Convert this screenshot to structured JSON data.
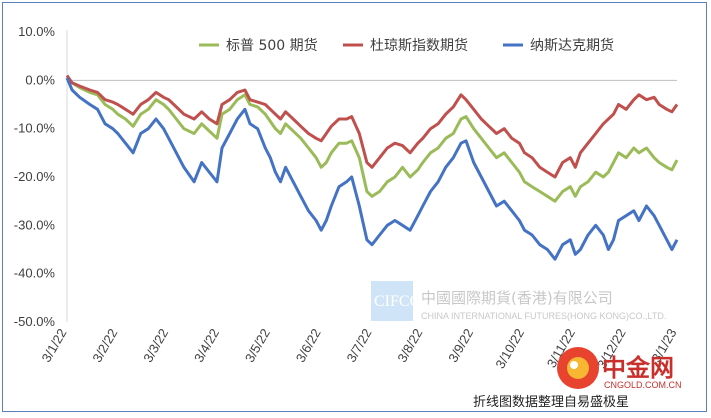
{
  "chart_data": {
    "type": "line",
    "title": "",
    "xlabel": "",
    "ylabel": "",
    "x_tick_labels": [
      "3/1/22",
      "3/2/22",
      "3/3/22",
      "3/4/22",
      "3/5/22",
      "3/6/22",
      "3/7/22",
      "3/8/22",
      "3/9/22",
      "3/10/22",
      "3/11/22",
      "3/12/22",
      "3/1/23"
    ],
    "y_tick_labels": [
      "10.0%",
      "0.0%",
      "-10.0%",
      "-20.0%",
      "-30.0%",
      "-40.0%",
      "-50.0%"
    ],
    "ylim": [
      -50,
      10
    ],
    "xlim": [
      0,
      12
    ],
    "grid": false,
    "legend_position": "top",
    "series": [
      {
        "name": "标普 500 期货",
        "color": "#9bbb59",
        "points": [
          [
            0,
            0.5
          ],
          [
            0.1,
            -0.5
          ],
          [
            0.25,
            -1.5
          ],
          [
            0.45,
            -2.5
          ],
          [
            0.6,
            -3
          ],
          [
            0.75,
            -5
          ],
          [
            0.9,
            -6
          ],
          [
            1,
            -7
          ],
          [
            1.15,
            -8
          ],
          [
            1.3,
            -9.5
          ],
          [
            1.45,
            -7
          ],
          [
            1.6,
            -6
          ],
          [
            1.75,
            -4
          ],
          [
            1.9,
            -5
          ],
          [
            2,
            -6
          ],
          [
            2.15,
            -8
          ],
          [
            2.3,
            -10
          ],
          [
            2.5,
            -11
          ],
          [
            2.65,
            -9
          ],
          [
            2.8,
            -10.5
          ],
          [
            2.95,
            -12
          ],
          [
            3.05,
            -7
          ],
          [
            3.2,
            -6
          ],
          [
            3.35,
            -4
          ],
          [
            3.5,
            -3
          ],
          [
            3.6,
            -5
          ],
          [
            3.75,
            -5.5
          ],
          [
            3.9,
            -7
          ],
          [
            4,
            -8.5
          ],
          [
            4.1,
            -10
          ],
          [
            4.2,
            -11
          ],
          [
            4.3,
            -9
          ],
          [
            4.45,
            -10.5
          ],
          [
            4.6,
            -12
          ],
          [
            4.75,
            -14
          ],
          [
            4.9,
            -16
          ],
          [
            5,
            -18
          ],
          [
            5.1,
            -17
          ],
          [
            5.2,
            -15
          ],
          [
            5.35,
            -13
          ],
          [
            5.5,
            -13
          ],
          [
            5.6,
            -12.5
          ],
          [
            5.75,
            -16
          ],
          [
            5.9,
            -23
          ],
          [
            6,
            -24
          ],
          [
            6.15,
            -23
          ],
          [
            6.3,
            -21
          ],
          [
            6.45,
            -20
          ],
          [
            6.6,
            -18
          ],
          [
            6.75,
            -20
          ],
          [
            6.9,
            -18.5
          ],
          [
            7,
            -17
          ],
          [
            7.15,
            -15
          ],
          [
            7.3,
            -14
          ],
          [
            7.45,
            -12
          ],
          [
            7.6,
            -11
          ],
          [
            7.75,
            -8
          ],
          [
            7.85,
            -7.5
          ],
          [
            8,
            -10
          ],
          [
            8.15,
            -12
          ],
          [
            8.3,
            -14
          ],
          [
            8.45,
            -16
          ],
          [
            8.6,
            -15
          ],
          [
            8.75,
            -17
          ],
          [
            8.9,
            -19
          ],
          [
            9,
            -21
          ],
          [
            9.15,
            -22
          ],
          [
            9.3,
            -23
          ],
          [
            9.45,
            -24
          ],
          [
            9.6,
            -25
          ],
          [
            9.75,
            -23
          ],
          [
            9.9,
            -22
          ],
          [
            10,
            -24
          ],
          [
            10.1,
            -22
          ],
          [
            10.25,
            -21
          ],
          [
            10.4,
            -19
          ],
          [
            10.55,
            -20
          ],
          [
            10.65,
            -19
          ],
          [
            10.75,
            -17
          ],
          [
            10.85,
            -15
          ],
          [
            11,
            -16
          ],
          [
            11.15,
            -14
          ],
          [
            11.25,
            -15
          ],
          [
            11.4,
            -14
          ],
          [
            11.55,
            -16
          ],
          [
            11.65,
            -17
          ],
          [
            11.8,
            -18
          ],
          [
            11.9,
            -18.5
          ],
          [
            12,
            -16.5
          ]
        ]
      },
      {
        "name": "杜琼斯指数期货",
        "color": "#c0504d",
        "points": [
          [
            0,
            1
          ],
          [
            0.1,
            -0.5
          ],
          [
            0.25,
            -1.2
          ],
          [
            0.45,
            -2
          ],
          [
            0.6,
            -2.5
          ],
          [
            0.75,
            -4
          ],
          [
            0.9,
            -4.5
          ],
          [
            1,
            -5
          ],
          [
            1.15,
            -6
          ],
          [
            1.3,
            -7
          ],
          [
            1.45,
            -5
          ],
          [
            1.6,
            -4
          ],
          [
            1.75,
            -2.5
          ],
          [
            1.9,
            -3.5
          ],
          [
            2,
            -4
          ],
          [
            2.15,
            -5.5
          ],
          [
            2.3,
            -7
          ],
          [
            2.5,
            -8
          ],
          [
            2.65,
            -6.5
          ],
          [
            2.8,
            -8
          ],
          [
            2.95,
            -9
          ],
          [
            3.05,
            -5
          ],
          [
            3.2,
            -4
          ],
          [
            3.35,
            -2.5
          ],
          [
            3.5,
            -2
          ],
          [
            3.6,
            -4
          ],
          [
            3.75,
            -4.5
          ],
          [
            3.9,
            -5
          ],
          [
            4,
            -6
          ],
          [
            4.1,
            -7
          ],
          [
            4.2,
            -8
          ],
          [
            4.3,
            -6.5
          ],
          [
            4.45,
            -8
          ],
          [
            4.6,
            -9.5
          ],
          [
            4.75,
            -11
          ],
          [
            4.9,
            -12
          ],
          [
            5,
            -12.5
          ],
          [
            5.1,
            -11
          ],
          [
            5.2,
            -9.5
          ],
          [
            5.35,
            -8
          ],
          [
            5.5,
            -8
          ],
          [
            5.6,
            -7.5
          ],
          [
            5.75,
            -11
          ],
          [
            5.9,
            -17
          ],
          [
            6,
            -18
          ],
          [
            6.15,
            -16
          ],
          [
            6.3,
            -14
          ],
          [
            6.45,
            -13
          ],
          [
            6.6,
            -13.5
          ],
          [
            6.75,
            -15
          ],
          [
            6.9,
            -13
          ],
          [
            7,
            -12
          ],
          [
            7.15,
            -10
          ],
          [
            7.3,
            -9
          ],
          [
            7.45,
            -7
          ],
          [
            7.6,
            -5.5
          ],
          [
            7.75,
            -3
          ],
          [
            7.85,
            -4
          ],
          [
            8,
            -6
          ],
          [
            8.15,
            -8
          ],
          [
            8.3,
            -9.5
          ],
          [
            8.45,
            -11
          ],
          [
            8.6,
            -10
          ],
          [
            8.75,
            -12
          ],
          [
            8.9,
            -13
          ],
          [
            9,
            -15
          ],
          [
            9.15,
            -16
          ],
          [
            9.3,
            -18
          ],
          [
            9.45,
            -19
          ],
          [
            9.6,
            -20
          ],
          [
            9.75,
            -17
          ],
          [
            9.9,
            -16
          ],
          [
            10,
            -18
          ],
          [
            10.1,
            -15
          ],
          [
            10.25,
            -13
          ],
          [
            10.4,
            -11
          ],
          [
            10.55,
            -9
          ],
          [
            10.65,
            -8
          ],
          [
            10.75,
            -7
          ],
          [
            10.85,
            -5
          ],
          [
            11,
            -6
          ],
          [
            11.15,
            -4
          ],
          [
            11.25,
            -3
          ],
          [
            11.4,
            -4
          ],
          [
            11.55,
            -3.5
          ],
          [
            11.65,
            -5
          ],
          [
            11.8,
            -6
          ],
          [
            11.9,
            -6.5
          ],
          [
            12,
            -5
          ]
        ]
      },
      {
        "name": "纳斯达克期货",
        "color": "#4472c4",
        "points": [
          [
            0,
            0.5
          ],
          [
            0.1,
            -2
          ],
          [
            0.25,
            -3.5
          ],
          [
            0.45,
            -5
          ],
          [
            0.6,
            -6
          ],
          [
            0.75,
            -9
          ],
          [
            0.9,
            -10
          ],
          [
            1,
            -11
          ],
          [
            1.15,
            -13
          ],
          [
            1.3,
            -15
          ],
          [
            1.45,
            -11
          ],
          [
            1.6,
            -10
          ],
          [
            1.75,
            -8
          ],
          [
            1.9,
            -10
          ],
          [
            2,
            -12
          ],
          [
            2.15,
            -15
          ],
          [
            2.3,
            -18
          ],
          [
            2.5,
            -21
          ],
          [
            2.65,
            -17
          ],
          [
            2.8,
            -19
          ],
          [
            2.95,
            -21
          ],
          [
            3.05,
            -14
          ],
          [
            3.2,
            -11
          ],
          [
            3.35,
            -8
          ],
          [
            3.5,
            -6
          ],
          [
            3.6,
            -9
          ],
          [
            3.75,
            -10
          ],
          [
            3.9,
            -14
          ],
          [
            4,
            -16
          ],
          [
            4.1,
            -19
          ],
          [
            4.2,
            -21
          ],
          [
            4.3,
            -18
          ],
          [
            4.45,
            -21
          ],
          [
            4.6,
            -24
          ],
          [
            4.75,
            -27
          ],
          [
            4.9,
            -29
          ],
          [
            5,
            -31
          ],
          [
            5.1,
            -29
          ],
          [
            5.2,
            -26
          ],
          [
            5.35,
            -22
          ],
          [
            5.5,
            -21
          ],
          [
            5.6,
            -20
          ],
          [
            5.75,
            -26
          ],
          [
            5.9,
            -33
          ],
          [
            6,
            -34
          ],
          [
            6.15,
            -32
          ],
          [
            6.3,
            -30
          ],
          [
            6.45,
            -29
          ],
          [
            6.6,
            -30
          ],
          [
            6.75,
            -31
          ],
          [
            6.9,
            -28
          ],
          [
            7,
            -26
          ],
          [
            7.15,
            -23
          ],
          [
            7.3,
            -21
          ],
          [
            7.45,
            -18
          ],
          [
            7.6,
            -16
          ],
          [
            7.75,
            -13
          ],
          [
            7.85,
            -12.5
          ],
          [
            8,
            -17
          ],
          [
            8.15,
            -20
          ],
          [
            8.3,
            -23
          ],
          [
            8.45,
            -26
          ],
          [
            8.6,
            -25
          ],
          [
            8.75,
            -27
          ],
          [
            8.9,
            -29
          ],
          [
            9,
            -31
          ],
          [
            9.15,
            -32
          ],
          [
            9.3,
            -34
          ],
          [
            9.45,
            -35
          ],
          [
            9.6,
            -37
          ],
          [
            9.75,
            -34
          ],
          [
            9.9,
            -33
          ],
          [
            10,
            -36
          ],
          [
            10.1,
            -35
          ],
          [
            10.25,
            -32
          ],
          [
            10.4,
            -30
          ],
          [
            10.55,
            -32
          ],
          [
            10.65,
            -35
          ],
          [
            10.75,
            -33
          ],
          [
            10.85,
            -29
          ],
          [
            11,
            -28
          ],
          [
            11.15,
            -27
          ],
          [
            11.25,
            -29
          ],
          [
            11.4,
            -26
          ],
          [
            11.55,
            -28
          ],
          [
            11.65,
            -30
          ],
          [
            11.8,
            -33
          ],
          [
            11.9,
            -35
          ],
          [
            12,
            -33
          ]
        ]
      }
    ]
  },
  "watermark": {
    "logo_text": "CIFCO",
    "company_cn": "中國國際期貨(香港)有限公司",
    "company_en": "CHINA INTERNATIONAL FUTURES(HONG KONG)CO.,LTD."
  },
  "cngold": {
    "logo_text": "中金网",
    "url_text": "CNGOLD.COM.CN"
  },
  "caption": "折线图数据整理自易盛极星"
}
